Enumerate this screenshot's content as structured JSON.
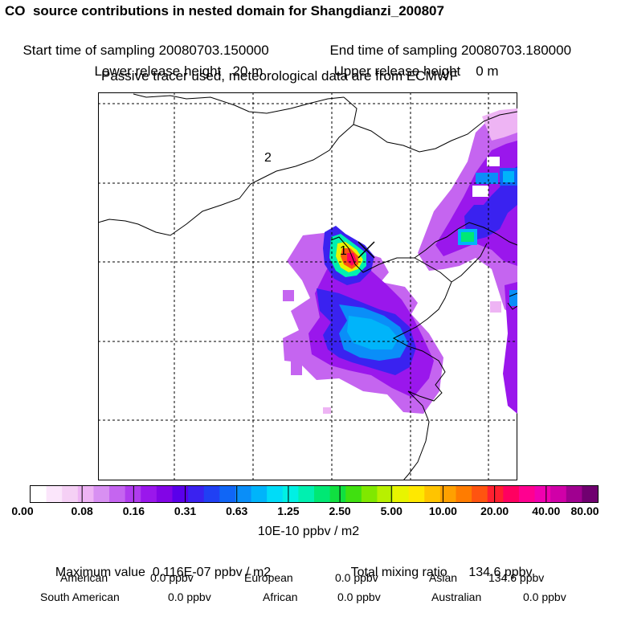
{
  "header": {
    "title": "CO  source contributions in nested domain for Shangdianzi_200807",
    "start_label": "Start time of sampling",
    "start_value": "20080703.150000",
    "end_label": "End time of sampling",
    "end_value": "20080703.180000",
    "lower_label": "Lower release height",
    "lower_value": "20 m",
    "upper_label": "Upper release height",
    "upper_value": "0 m",
    "tracer_note": "Passive tracer used, meteorological data are from ECMWF"
  },
  "map": {
    "labels": [
      "1",
      "2"
    ],
    "receptor_marker": "x-marker-icon"
  },
  "colorbar": {
    "tick_labels": [
      "0.00",
      "0.08",
      "0.16",
      "0.31",
      "0.63",
      "1.25",
      "2.50",
      "5.00",
      "10.00",
      "20.00",
      "40.00",
      "80.00"
    ],
    "unit": "10E-10 ppbv / m2",
    "colors": [
      "#ffffff",
      "#fbe6fb",
      "#f5d0f5",
      "#eeb4f4",
      "#d890f2",
      "#c565f0",
      "#b03cee",
      "#9a17ec",
      "#8205e6",
      "#5a00ea",
      "#3a22f0",
      "#2040f4",
      "#1066f6",
      "#0a8ef8",
      "#00b4fa",
      "#00dcf8",
      "#00f0e4",
      "#00f0b0",
      "#00e874",
      "#10e040",
      "#40e010",
      "#80e800",
      "#b8f000",
      "#e8f400",
      "#ffe800",
      "#ffc400",
      "#ffa000",
      "#ff7c00",
      "#ff5410",
      "#ff2030",
      "#ff0060",
      "#ff0090",
      "#f000b0",
      "#d000a8",
      "#a00090",
      "#700070"
    ]
  },
  "stats": {
    "max_label": "Maximum value",
    "max_value": "0.116E-07 ppbv / m2",
    "total_label": "Total mixing ratio",
    "total_value": "134.6 ppbv",
    "american_label": "American",
    "american_value": "0.0 ppbv",
    "european_label": "European",
    "european_value": "0.0 ppbv",
    "asian_label": "Asian",
    "asian_value": "134.6 ppbv",
    "south_american_label": "South American",
    "south_american_value": "0.0 ppbv",
    "african_label": "African",
    "african_value": "0.0 ppbv",
    "australian_label": "Australian",
    "australian_value": "0.0 ppbv"
  }
}
